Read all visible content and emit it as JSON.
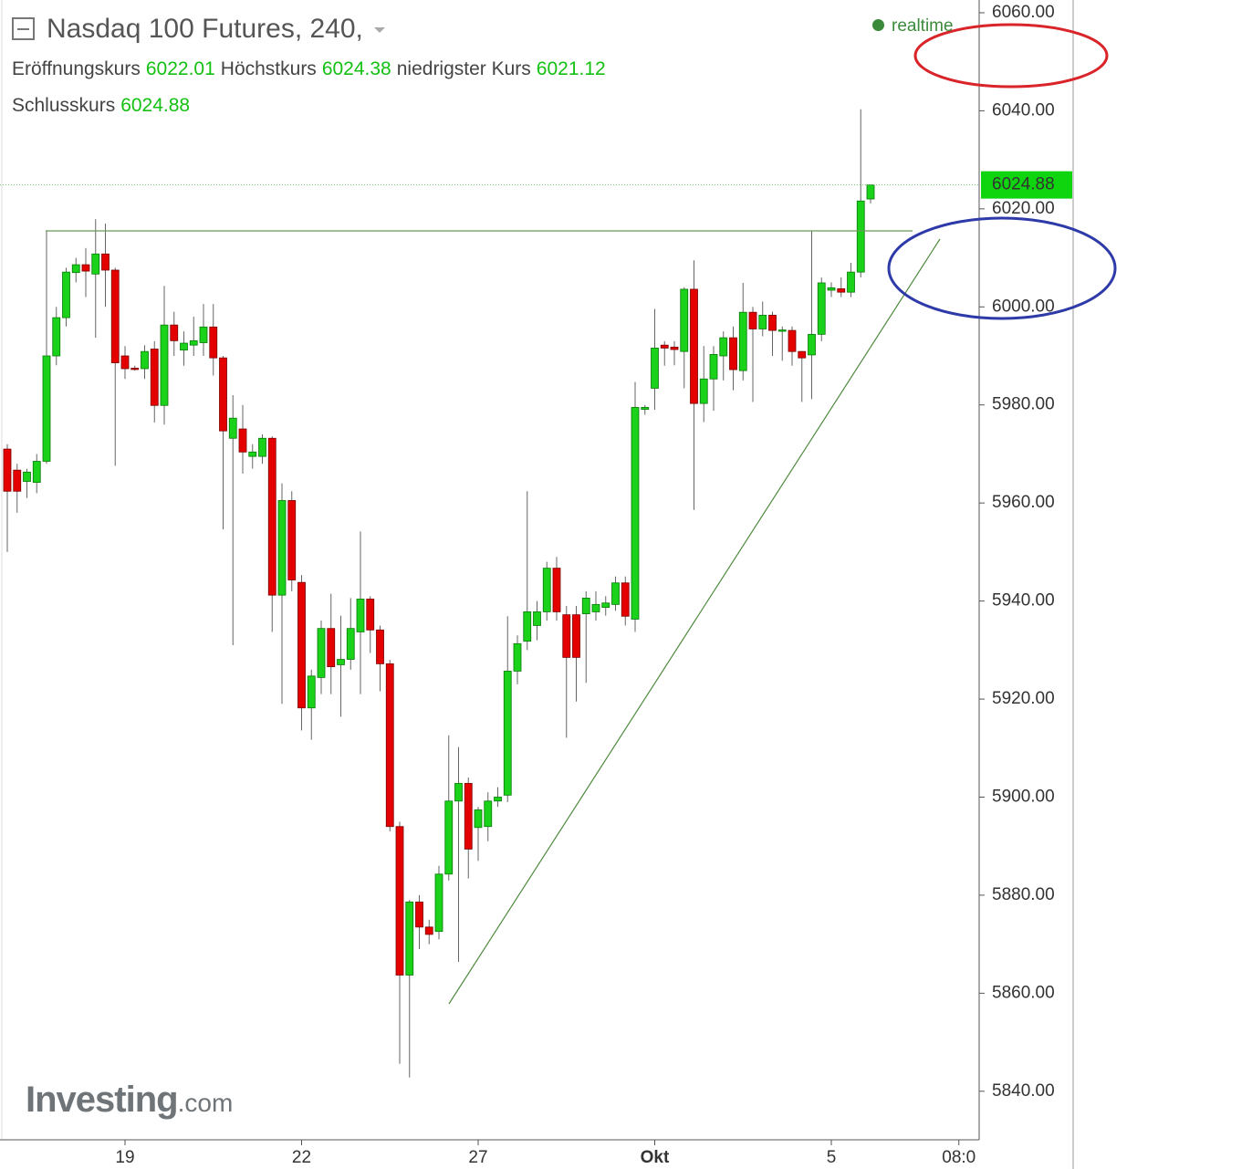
{
  "chart_data": {
    "type": "candlestick",
    "title": "Nasdaq 100 Futures, 240,",
    "status": "realtime",
    "ohlc_labels": {
      "open": "Eröffnungskurs",
      "high": "Höchstkurs",
      "low": "niedrigster Kurs",
      "close": "Schlusskurs"
    },
    "watermark": {
      "brand": "Investing",
      "suffix": ".com"
    },
    "categories": [
      null,
      null,
      null,
      null,
      null,
      null,
      null,
      null,
      null,
      null,
      null,
      null,
      "19",
      null,
      null,
      null,
      null,
      null,
      null,
      null,
      null,
      null,
      null,
      null,
      null,
      null,
      null,
      null,
      null,
      null,
      "22",
      null,
      null,
      null,
      null,
      null,
      null,
      null,
      null,
      null,
      null,
      null,
      null,
      null,
      null,
      null,
      null,
      null,
      "27",
      null,
      null,
      null,
      null,
      null,
      null,
      null,
      null,
      null,
      null,
      null,
      null,
      null,
      null,
      null,
      null,
      null,
      "Okt",
      null,
      null,
      null,
      null,
      null,
      null,
      null,
      null,
      null,
      null,
      null,
      null,
      null,
      null,
      null,
      null,
      null,
      "5",
      null,
      null,
      null,
      null,
      null,
      null,
      null,
      null,
      null,
      null,
      null,
      null,
      "08:0"
    ],
    "open": [
      5971,
      5966.7,
      5964.4,
      5964.2,
      5968.5,
      5990,
      5997.8,
      6007,
      6008.6,
      6006.7,
      6010.8,
      6007.5,
      5990,
      5987.5,
      5987.4,
      5991.4,
      5979.9,
      5996.3,
      5991.2,
      5992.2,
      5992.7,
      5995.9,
      5989.6,
      5973.2,
      5975.1,
      5969.5,
      5969.5,
      5973.2,
      5941.2,
      5960.5,
      5943.8,
      5918.2,
      5924.4,
      5934.4,
      5927,
      5928.1,
      5933.7,
      5940.4,
      5934.1,
      5927.2,
      5894,
      5863.7,
      5878.6,
      5873.5,
      5872.6,
      5884.3,
      5899.2,
      5902.8,
      5893.8,
      5894,
      5899.2,
      5900.4,
      5925.7,
      5931.8,
      5935,
      5937.8,
      5946.7,
      5937.2,
      5937.2,
      5937.4,
      5937.8,
      5938.7,
      5939.3,
      5943.7,
      5936.3,
      5979.1,
      5983.4,
      5992.2,
      5991.8,
      5990.9,
      6003.6,
      5980.3,
      5985.3,
      5990,
      5993.7,
      5987,
      5998.9,
      5995.5,
      5998.3,
      5995.2,
      5995.2,
      5990.9,
      5990.2,
      5994.4,
      6003.4,
      6003.7,
      6003,
      6007.1,
      6022.01,
      null,
      null,
      null,
      null,
      null,
      null,
      null,
      null,
      null
    ],
    "high": [
      5972,
      5968,
      5967,
      5970,
      6015.5,
      6000,
      6008,
      6010,
      6012,
      6017.9,
      6017,
      6008,
      5992,
      5988,
      5992.2,
      5993,
      6004.3,
      5999,
      5995,
      5998,
      6000.6,
      6000.6,
      5990,
      5982,
      5980,
      5972,
      5974,
      5973.6,
      5964,
      5962.4,
      5945.3,
      5926,
      5936,
      5941.5,
      5937,
      5940.6,
      5954.2,
      5941,
      5935,
      5928,
      5895,
      5879,
      5880,
      5875,
      5886,
      5912.6,
      5910.2,
      5904,
      5898,
      5901,
      5902,
      5936.9,
      5933,
      5962.4,
      5940,
      5948,
      5949,
      5939,
      5939,
      5942,
      5942,
      5941,
      5945,
      5945,
      5984.7,
      5980,
      5999.6,
      5993,
      5993,
      6004,
      6009.5,
      5992,
      5992,
      5995,
      5996,
      6004.9,
      6000,
      6001.1,
      5999,
      5996,
      5996,
      5991,
      6015.5,
      6006,
      6005,
      6006,
      6009,
      6040.3,
      6024.38,
      null,
      null,
      null,
      null,
      null,
      null,
      null,
      null,
      null
    ],
    "low": [
      5950,
      5958,
      5961,
      5962,
      5968,
      5988.1,
      5996,
      6005,
      6002,
      5993.7,
      6000,
      5967.6,
      5985.3,
      5987,
      5985.3,
      5976.4,
      5976,
      5990,
      5988,
      5990,
      5990,
      5986,
      5954.6,
      5931,
      5966,
      5967,
      5968,
      5933.7,
      5919,
      5942,
      5913.6,
      5911.7,
      5921,
      5921,
      5916.4,
      5926,
      5921,
      5929.4,
      5921.6,
      5893,
      5845.6,
      5842.8,
      5869,
      5870,
      5871,
      5883,
      5866.4,
      5883.4,
      5887,
      5891,
      5898,
      5899,
      5923,
      5930,
      5932,
      5936,
      5936,
      5912.1,
      5919.5,
      5923.3,
      5936,
      5937,
      5938,
      5935,
      5933.7,
      5978,
      5979,
      5988,
      5988.1,
      5983.4,
      5958.6,
      5976.5,
      5978.8,
      5985,
      5983,
      5985,
      5980.6,
      5994,
      5990,
      5989,
      5988,
      5980.6,
      5981.2,
      5993,
      6002,
      6002,
      6002,
      6006,
      6021.12,
      null,
      null,
      null,
      null,
      null,
      null,
      null,
      null,
      null
    ],
    "close": [
      5962.4,
      5962.4,
      5966.3,
      5968.5,
      5990,
      5997.8,
      6007.1,
      6008.6,
      6007.3,
      6010.8,
      6007.5,
      5988.6,
      5987.4,
      5987.3,
      5990.9,
      5979.9,
      5996.3,
      5993.1,
      5992.6,
      5993.1,
      5995.9,
      5989.6,
      5974.7,
      5977.3,
      5970.4,
      5970.4,
      5973.2,
      5941.2,
      5960.5,
      5944.3,
      5918.2,
      5924.7,
      5934.4,
      5926.6,
      5928.1,
      5934.4,
      5940.4,
      5934.1,
      5927.2,
      5894,
      5863.7,
      5878.6,
      5873.5,
      5872,
      5884.3,
      5899.2,
      5902.8,
      5889.4,
      5897.4,
      5899.2,
      5900,
      5925.7,
      5931.3,
      5937.8,
      5937.8,
      5946.7,
      5937.8,
      5928.5,
      5928.5,
      5940.6,
      5939.3,
      5939.6,
      5943.7,
      5936.9,
      5979.5,
      5979.5,
      5991.6,
      5991.6,
      5991.3,
      6003.6,
      5980.3,
      5985.3,
      5990.3,
      5993.7,
      5987.2,
      5998.9,
      5995.5,
      5998.3,
      5995.2,
      5995.3,
      5990.9,
      5989.6,
      5994.4,
      6004.9,
      6003.9,
      6003,
      6007.1,
      6021.6,
      6024.88,
      null,
      null,
      null,
      null,
      null,
      null,
      null,
      null,
      null
    ],
    "up_color": "#19d219",
    "down_color": "#e50000",
    "ylim": [
      5830.1,
      6062.6
    ],
    "yticks": [
      {
        "value": 5840,
        "label": "5840.00"
      },
      {
        "value": 5860,
        "label": "5860.00"
      },
      {
        "value": 5880,
        "label": "5880.00"
      },
      {
        "value": 5900,
        "label": "5900.00"
      },
      {
        "value": 5920,
        "label": "5920.00"
      },
      {
        "value": 5940,
        "label": "5940.00"
      },
      {
        "value": 5960,
        "label": "5960.00"
      },
      {
        "value": 5980,
        "label": "5980.00"
      },
      {
        "value": 6000,
        "label": "6000.00"
      },
      {
        "value": 6020,
        "label": "6020.00"
      },
      {
        "value": 6040,
        "label": "6040.00"
      },
      {
        "value": 6060,
        "label": "6060.00"
      }
    ],
    "grid": false
  }
}
